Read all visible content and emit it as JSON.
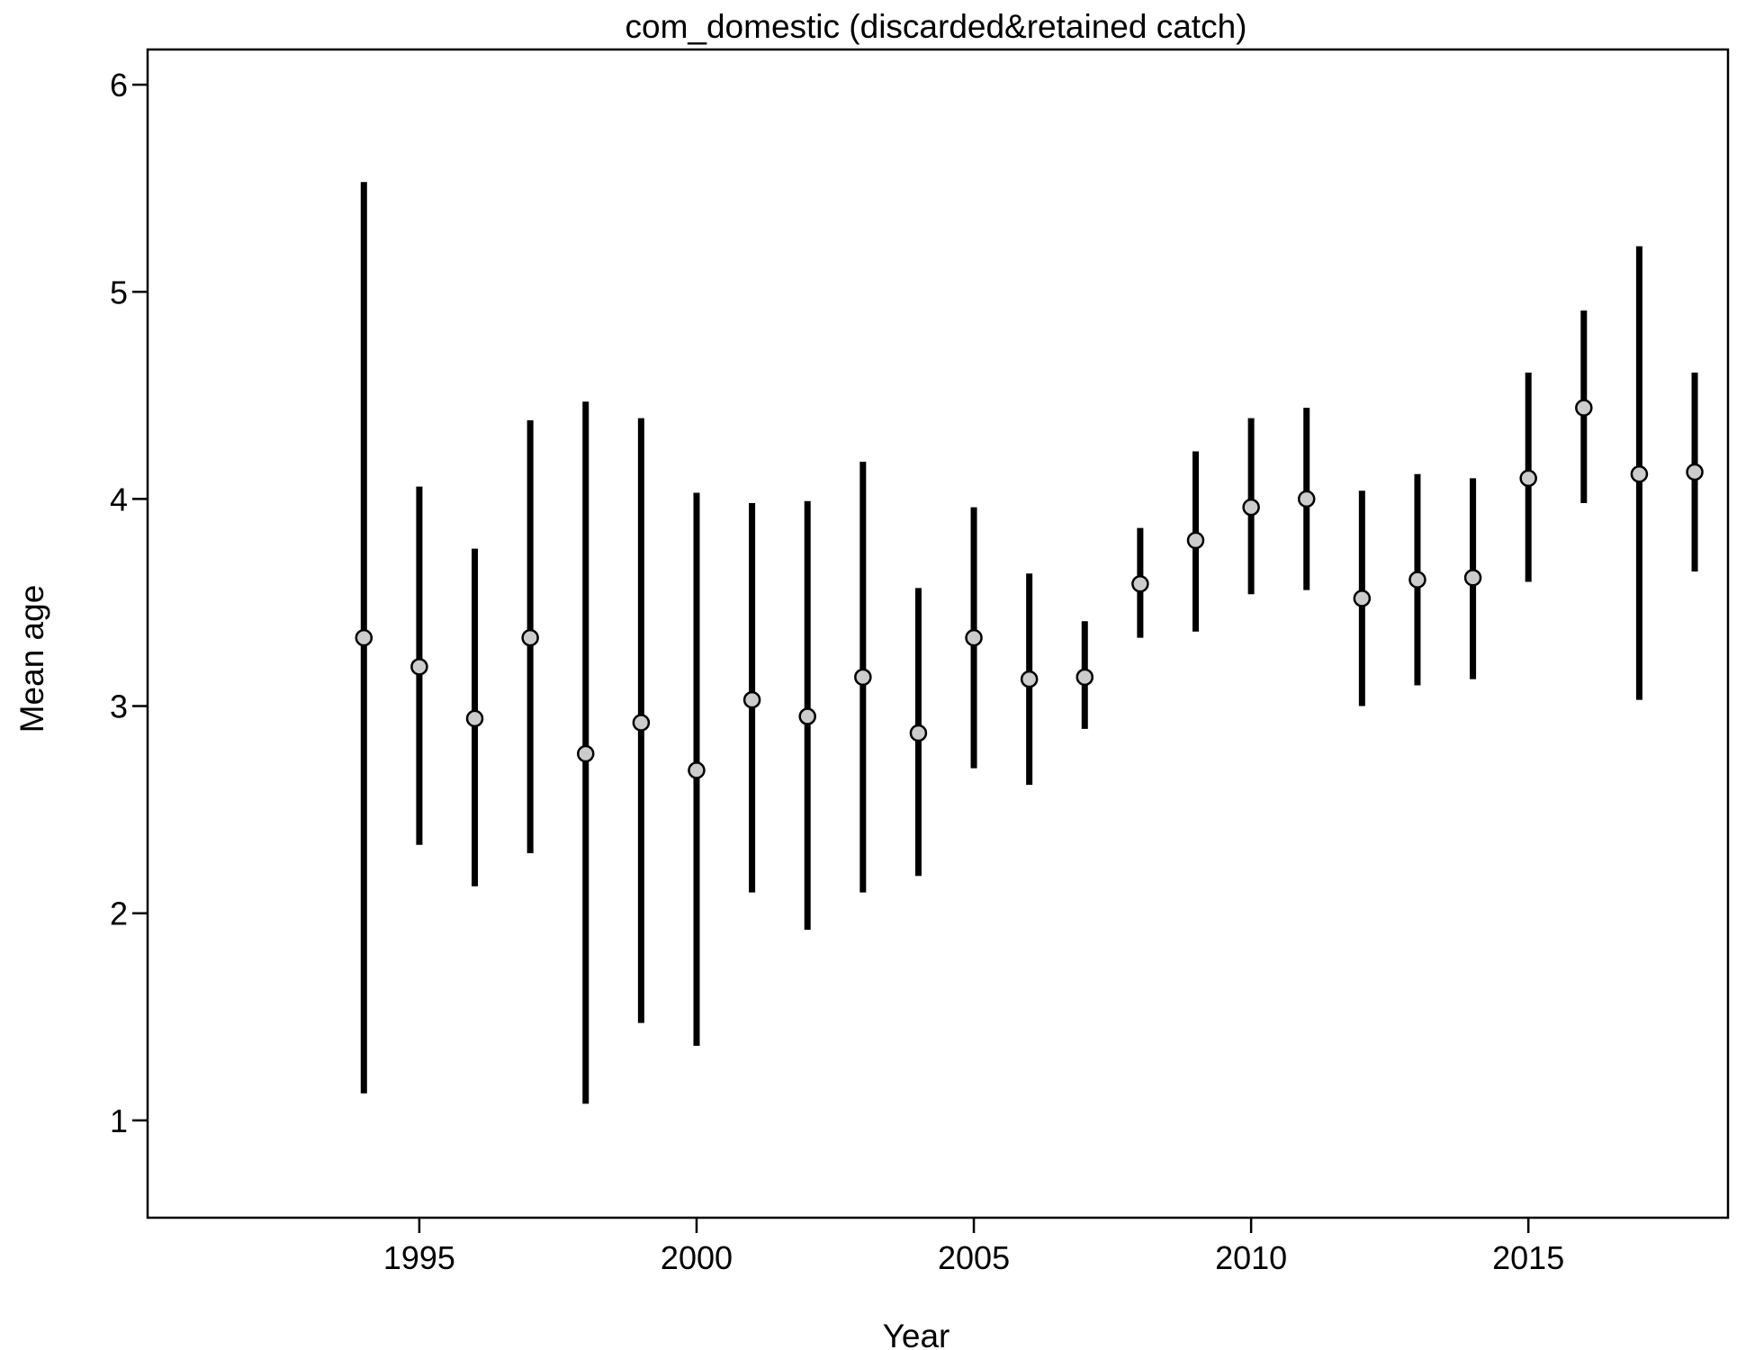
{
  "chart_data": {
    "type": "scatter",
    "title": "com_domestic (discarded&retained catch)",
    "xlabel": "Year",
    "ylabel": "Mean age",
    "xlim": [
      1990.1,
      2018.6
    ],
    "ylim": [
      0.53,
      6.17
    ],
    "x_ticks": [
      1995,
      2000,
      2005,
      2010,
      2015
    ],
    "y_ticks": [
      1,
      2,
      3,
      4,
      5,
      6
    ],
    "grid": false,
    "legend": "none",
    "colors": {
      "point_fill": "#cccccc",
      "point_stroke": "#000000",
      "interval": "#000000",
      "frame": "#000000"
    },
    "series": [
      {
        "x": [
          1994,
          1995,
          1996,
          1997,
          1998,
          1999,
          2000,
          2001,
          2002,
          2003,
          2004,
          2005,
          2006,
          2007,
          2008,
          2009,
          2010,
          2011,
          2012,
          2013,
          2014,
          2015,
          2016,
          2017,
          2018
        ],
        "y": [
          3.33,
          3.19,
          2.94,
          3.33,
          2.77,
          2.92,
          2.69,
          3.03,
          2.95,
          3.14,
          2.87,
          3.33,
          3.13,
          3.14,
          3.59,
          3.8,
          3.96,
          4.0,
          3.52,
          3.61,
          3.62,
          4.1,
          4.44,
          4.12,
          4.13
        ],
        "lower": [
          1.13,
          2.33,
          2.13,
          2.29,
          1.08,
          1.47,
          1.36,
          2.1,
          1.92,
          2.1,
          2.18,
          2.7,
          2.62,
          2.89,
          3.33,
          3.36,
          3.54,
          3.56,
          3.0,
          3.1,
          3.13,
          3.6,
          3.98,
          3.03,
          3.65
        ],
        "upper": [
          5.53,
          4.06,
          3.76,
          4.38,
          4.47,
          4.39,
          4.03,
          3.98,
          3.99,
          4.18,
          3.57,
          3.96,
          3.64,
          3.41,
          3.86,
          4.23,
          4.39,
          4.44,
          4.04,
          4.12,
          4.1,
          4.61,
          4.91,
          5.22,
          4.61
        ]
      }
    ]
  }
}
